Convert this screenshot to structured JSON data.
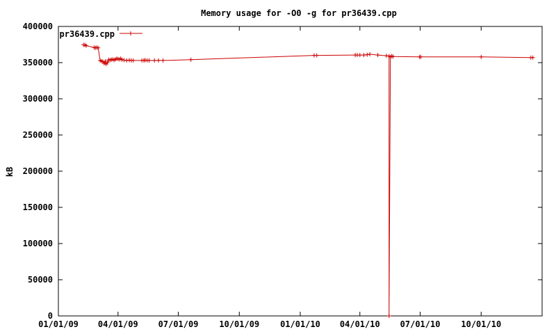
{
  "chart_data": {
    "type": "line",
    "title": "Memory usage for -O0 -g for pr36439.cpp",
    "xlabel": "",
    "ylabel": "kB",
    "ylim": [
      0,
      400000
    ],
    "yticks": [
      0,
      50000,
      100000,
      150000,
      200000,
      250000,
      300000,
      350000,
      400000
    ],
    "ytick_labels": [
      "0",
      "50000",
      "100000",
      "150000",
      "200000",
      "250000",
      "300000",
      "350000",
      "400000"
    ],
    "xlim": [
      "2009-01-01",
      "2011-01-01"
    ],
    "xticks": [
      "2009-01-01",
      "2009-04-01",
      "2009-07-01",
      "2009-10-01",
      "2010-01-01",
      "2010-04-01",
      "2010-07-01",
      "2010-10-01"
    ],
    "xtick_labels": [
      "01/01/09",
      "04/01/09",
      "07/01/09",
      "10/01/09",
      "01/01/10",
      "04/01/10",
      "07/01/10",
      "10/01/10"
    ],
    "legend_position": "top-left",
    "line_color": "#cc0000",
    "series": [
      {
        "name": "pr36439.cpp",
        "points": [
          [
            "2009-02-08",
            374500
          ],
          [
            "2009-02-10",
            374500
          ],
          [
            "2009-02-12",
            373500
          ],
          [
            "2009-02-24",
            371000
          ],
          [
            "2009-02-26",
            370500
          ],
          [
            "2009-02-28",
            371000
          ],
          [
            "2009-03-02",
            370500
          ],
          [
            "2009-03-05",
            353000
          ],
          [
            "2009-03-07",
            352000
          ],
          [
            "2009-03-09",
            351500
          ],
          [
            "2009-03-11",
            349000
          ],
          [
            "2009-03-13",
            352000
          ],
          [
            "2009-03-14",
            348000
          ],
          [
            "2009-03-16",
            350000
          ],
          [
            "2009-03-18",
            354000
          ],
          [
            "2009-03-20",
            353500
          ],
          [
            "2009-03-22",
            354000
          ],
          [
            "2009-03-24",
            354500
          ],
          [
            "2009-03-26",
            353500
          ],
          [
            "2009-03-28",
            354500
          ],
          [
            "2009-03-30",
            355500
          ],
          [
            "2009-04-01",
            355000
          ],
          [
            "2009-04-03",
            354500
          ],
          [
            "2009-04-05",
            355500
          ],
          [
            "2009-04-07",
            354000
          ],
          [
            "2009-04-10",
            353500
          ],
          [
            "2009-04-14",
            353000
          ],
          [
            "2009-04-18",
            353500
          ],
          [
            "2009-04-21",
            353000
          ],
          [
            "2009-04-24",
            353000
          ],
          [
            "2009-05-07",
            353000
          ],
          [
            "2009-05-10",
            353000
          ],
          [
            "2009-05-12",
            353500
          ],
          [
            "2009-05-15",
            353000
          ],
          [
            "2009-05-18",
            353000
          ],
          [
            "2009-05-26",
            353000
          ],
          [
            "2009-06-01",
            353000
          ],
          [
            "2009-06-08",
            353000
          ],
          [
            "2009-07-20",
            354000
          ],
          [
            "2010-01-22",
            360000
          ],
          [
            "2010-01-26",
            360000
          ],
          [
            "2010-03-25",
            360500
          ],
          [
            "2010-03-28",
            360500
          ],
          [
            "2010-04-01",
            360500
          ],
          [
            "2010-04-07",
            360500
          ],
          [
            "2010-04-12",
            361000
          ],
          [
            "2010-04-16",
            361500
          ],
          [
            "2010-04-28",
            360500
          ],
          [
            "2010-05-11",
            359500
          ],
          [
            "2010-05-15",
            359000
          ],
          [
            "2010-05-15",
            0
          ],
          [
            "2010-05-17",
            358000
          ],
          [
            "2010-05-19",
            359000
          ],
          [
            "2010-05-21",
            358500
          ],
          [
            "2010-06-30",
            358000
          ],
          [
            "2010-07-02",
            358000
          ],
          [
            "2010-10-01",
            358000
          ],
          [
            "2010-12-15",
            357000
          ],
          [
            "2010-12-18",
            357000
          ]
        ]
      }
    ]
  }
}
